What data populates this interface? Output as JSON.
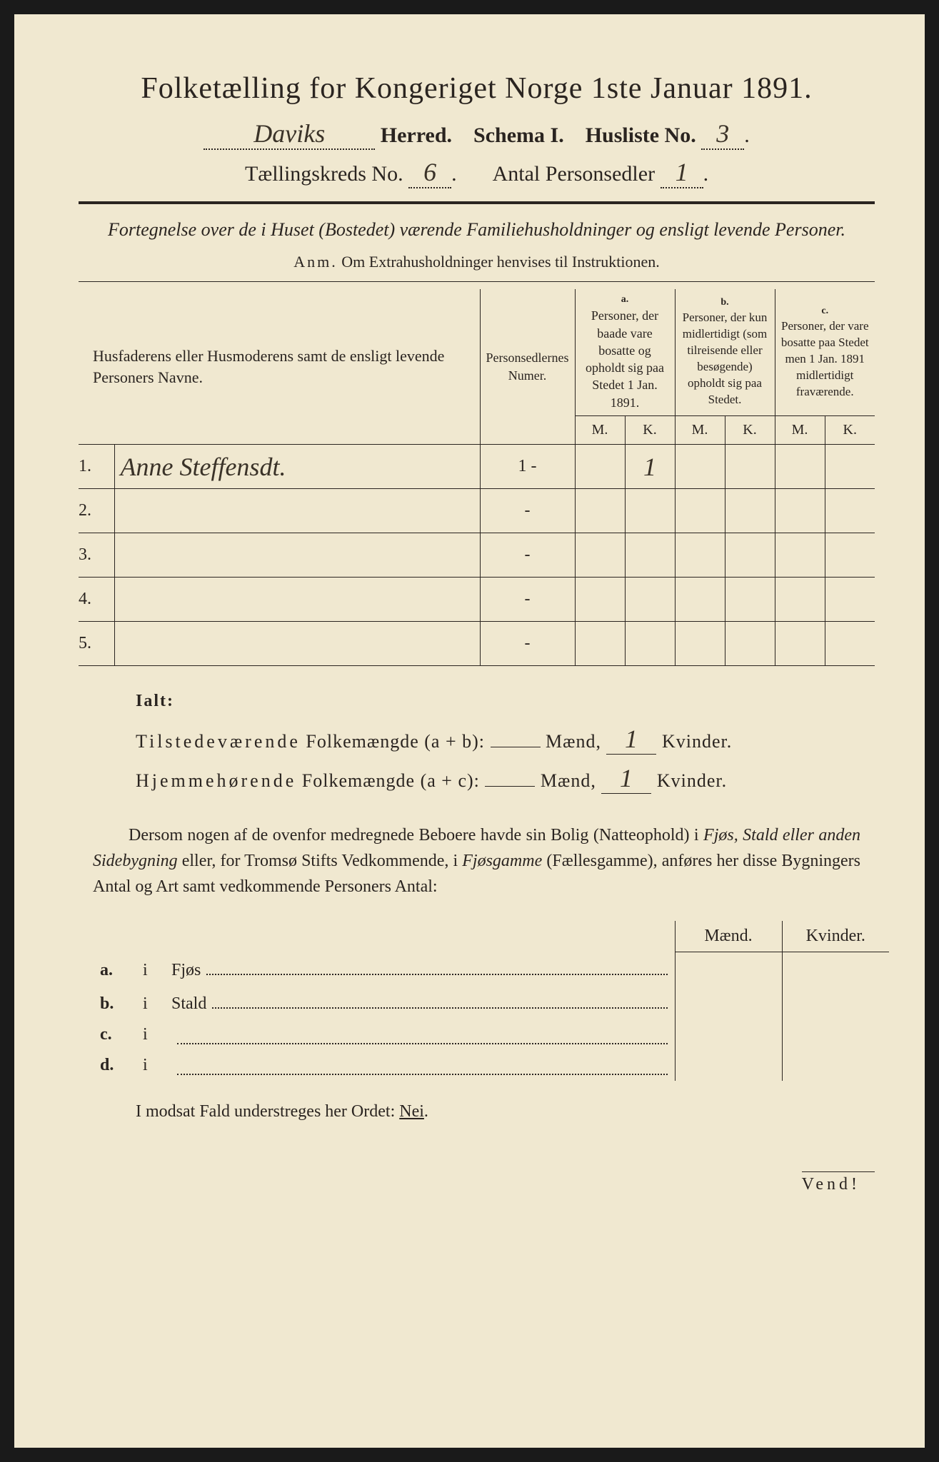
{
  "title": "Folketælling for Kongeriget Norge 1ste Januar 1891.",
  "header": {
    "herred_value": "Daviks",
    "herred_label": "Herred.",
    "schema_label": "Schema I.",
    "husliste_label": "Husliste No.",
    "husliste_value": "3",
    "kreds_label": "Tællingskreds No.",
    "kreds_value": "6",
    "antal_label": "Antal Personsedler",
    "antal_value": "1"
  },
  "subtitle": "Fortegnelse over de i Huset (Bostedet) værende Familiehusholdninger og ensligt levende Personer.",
  "anm_label": "Anm.",
  "anm_text": "Om Extrahusholdninger henvises til Instruktionen.",
  "table": {
    "col_name": "Husfaderens eller Husmoderens samt de ensligt levende Personers Navne.",
    "col_psn": "Personsedlernes Numer.",
    "col_a_label": "a.",
    "col_a": "Personer, der baade vare bosatte og opholdt sig paa Stedet 1 Jan. 1891.",
    "col_b_label": "b.",
    "col_b": "Personer, der kun midlertidigt (som tilreisende eller besøgende) opholdt sig paa Stedet.",
    "col_c_label": "c.",
    "col_c": "Personer, der vare bosatte paa Stedet men 1 Jan. 1891 midlertidigt fraværende.",
    "m": "M.",
    "k": "K.",
    "rows": [
      {
        "n": "1.",
        "name": "Anne Steffensdt.",
        "psn": "1 -",
        "a_m": "",
        "a_k": "1",
        "b_m": "",
        "b_k": "",
        "c_m": "",
        "c_k": ""
      },
      {
        "n": "2.",
        "name": "",
        "psn": "-",
        "a_m": "",
        "a_k": "",
        "b_m": "",
        "b_k": "",
        "c_m": "",
        "c_k": ""
      },
      {
        "n": "3.",
        "name": "",
        "psn": "-",
        "a_m": "",
        "a_k": "",
        "b_m": "",
        "b_k": "",
        "c_m": "",
        "c_k": ""
      },
      {
        "n": "4.",
        "name": "",
        "psn": "-",
        "a_m": "",
        "a_k": "",
        "b_m": "",
        "b_k": "",
        "c_m": "",
        "c_k": ""
      },
      {
        "n": "5.",
        "name": "",
        "psn": "-",
        "a_m": "",
        "a_k": "",
        "b_m": "",
        "b_k": "",
        "c_m": "",
        "c_k": ""
      }
    ]
  },
  "ialt": {
    "label": "Ialt:",
    "line1_a": "Tilstedeværende",
    "line1_b": "Folkemængde (a + b):",
    "line2_a": "Hjemmehørende",
    "line2_b": "Folkemængde (a + c):",
    "maend": "Mænd,",
    "kvinder": "Kvinder.",
    "v1_m": "",
    "v1_k": "1",
    "v2_m": "",
    "v2_k": "1"
  },
  "paragraph": "Dersom nogen af de ovenfor medregnede Beboere havde sin Bolig (Natteophold) i Fjøs, Stald eller anden Sidebygning eller, for Tromsø Stifts Vedkommende, i Fjøsgamme (Fællesgamme), anføres her disse Bygningers Antal og Art samt vedkommende Personers Antal:",
  "mk": {
    "maend": "Mænd.",
    "kvinder": "Kvinder.",
    "rows": [
      {
        "k": "a.",
        "i": "i",
        "label": "Fjøs"
      },
      {
        "k": "b.",
        "i": "i",
        "label": "Stald"
      },
      {
        "k": "c.",
        "i": "i",
        "label": ""
      },
      {
        "k": "d.",
        "i": "i",
        "label": ""
      }
    ]
  },
  "nei": "I modsat Fald understreges her Ordet: Nei.",
  "vend": "Vend!",
  "colors": {
    "paper": "#f0e8d0",
    "ink": "#2a2420",
    "frame": "#1a1a1a"
  }
}
